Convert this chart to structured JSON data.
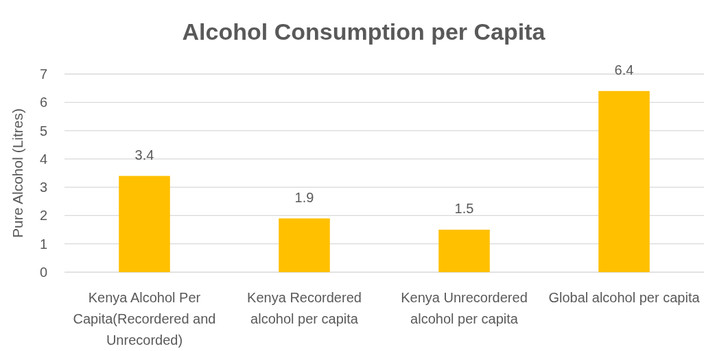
{
  "chart_data": {
    "type": "bar",
    "title": "Alcohol Consumption per Capita",
    "ylabel": "Pure Alcohol (Litres)",
    "categories": [
      "Kenya Alcohol Per Capita(Recordered and Unrecorded)",
      "Kenya Recordered alcohol per capita",
      "Kenya Unrecordered alcohol per capita",
      "Global alcohol per capita"
    ],
    "values": [
      3.4,
      1.9,
      1.5,
      6.4
    ],
    "color": "#ffc000",
    "ylim": [
      0,
      7
    ],
    "yticks": [
      0,
      1,
      2,
      3,
      4,
      5,
      6,
      7
    ],
    "grid": "y",
    "data_labels": true
  }
}
